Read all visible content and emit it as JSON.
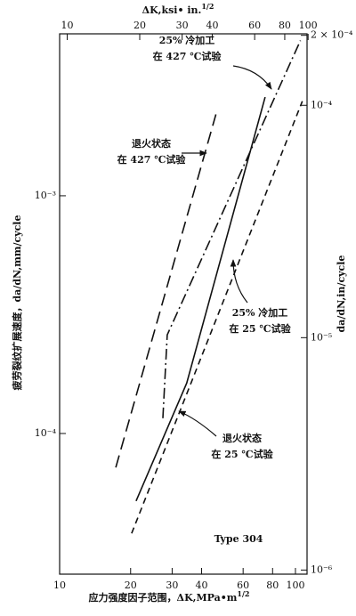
{
  "chart_data": {
    "type": "line",
    "log_x": true,
    "log_y": true,
    "xlabel": {
      "text": "应力强度因子范围，ΔK,MPa•m",
      "sup": "1/2"
    },
    "x2label": {
      "text": "ΔK,ksi• in.",
      "sup": "1/2"
    },
    "ylabel": "疲劳裂纹扩展速度，da/dN,mm/cycle",
    "y2label": "da/dN,in/cycle",
    "xlim": [
      10,
      112
    ],
    "xticks": [
      10,
      20,
      30,
      40,
      60,
      80,
      100
    ],
    "x2lim": [
      9.3,
      99
    ],
    "x2ticks": [
      10,
      20,
      30,
      40,
      60,
      80,
      100
    ],
    "ylim": [
      2.56e-05,
      0.0048
    ],
    "yticks": [
      {
        "value": 0.001,
        "label": "10⁻³"
      },
      {
        "value": 0.0001,
        "label": "10⁻⁴"
      }
    ],
    "y2lim": [
      9.6e-07,
      0.000203
    ],
    "y2ticks": [
      {
        "value": 0.0002,
        "label": "2 × 10⁻⁴"
      },
      {
        "value": 0.0001,
        "label": "10⁻⁴"
      },
      {
        "value": 1e-05,
        "label": "10⁻⁵"
      },
      {
        "value": 1e-06,
        "label": "10⁻⁶"
      }
    ],
    "series": [
      {
        "name": "退火状态 在 427 ℃试验",
        "color": "#111111",
        "dash": "long",
        "x": [
          17.3,
          46
        ],
        "values": [
          7.2e-05,
          0.0022
        ]
      },
      {
        "name": "25% 冷加工 在 427 ℃试验",
        "color": "#111111",
        "dash": "dashdot",
        "x": [
          27.4,
          28.6,
          105
        ],
        "values": [
          0.000116,
          0.00026,
          0.0045
        ]
      },
      {
        "name": "25% 冷加工 在 25 ℃试验",
        "color": "#111111",
        "dash": "short",
        "x": [
          20.2,
          107
        ],
        "values": [
          3.8e-05,
          0.0025
        ]
      },
      {
        "name": "退火状态 在 25 ℃试验",
        "color": "#111111",
        "dash": "solid",
        "x": [
          21.1,
          34.6,
          74.4
        ],
        "values": [
          5.2e-05,
          0.000163,
          0.0026
        ]
      }
    ],
    "annotations": [
      {
        "lines": [
          "25% 冷加工",
          "在 427 ℃试验"
        ]
      },
      {
        "lines": [
          "退火状态",
          "在 427 ℃试验"
        ]
      },
      {
        "lines": [
          "25% 冷加工",
          "在 25 ℃试验"
        ]
      },
      {
        "lines": [
          "退火状态",
          "在 25 ℃试验"
        ]
      },
      {
        "lines": [
          "Type 304"
        ]
      }
    ]
  }
}
